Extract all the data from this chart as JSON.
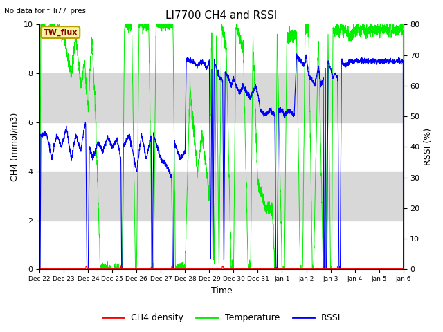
{
  "title": "LI7700 CH4 and RSSI",
  "top_left_text": "No data for f_li77_pres",
  "annotation_box": "TW_flux",
  "xlabel": "Time",
  "ylabel_left": "CH4 (mmol/m3)",
  "ylabel_right": "RSSI (%)",
  "ylim_left": [
    0,
    10
  ],
  "ylim_right": [
    0,
    80
  ],
  "yticks_left": [
    0,
    2,
    4,
    6,
    8,
    10
  ],
  "yticks_right": [
    0,
    10,
    20,
    30,
    40,
    50,
    60,
    70,
    80
  ],
  "bg_band_color": "#d8d8d8",
  "ch4_color": "#ff0000",
  "temp_color": "#00ee00",
  "rssi_color": "#0000ff",
  "legend_labels": [
    "CH4 density",
    "Temperature",
    "RSSI"
  ],
  "legend_colors": [
    "#ff0000",
    "#00ee00",
    "#0000ff"
  ],
  "tick_labels": [
    "Dec 22",
    "Dec 23",
    "Dec 24",
    "Dec 25",
    "Dec 26",
    "Dec 27",
    "Dec 28",
    "Dec 29",
    "Dec 30",
    "Dec 31",
    "Jan 1",
    "Jan 2",
    "Jan 3",
    "Jan 4",
    "Jan 5",
    "Jan 6"
  ],
  "n_days": 15
}
